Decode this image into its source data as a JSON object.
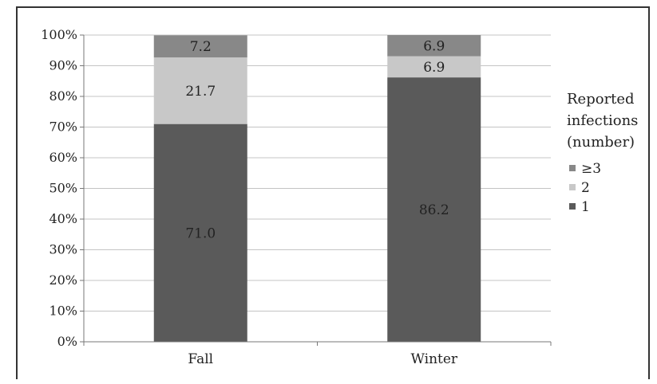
{
  "chart_data": {
    "type": "bar",
    "stacked": true,
    "categories": [
      "Fall",
      "Winter"
    ],
    "series": [
      {
        "name": "1",
        "values": [
          71.0,
          86.2
        ],
        "labels": [
          "71.0",
          "86.2"
        ],
        "color": "#5a5a5a",
        "label_color": "#222222"
      },
      {
        "name": "2",
        "values": [
          21.7,
          6.9
        ],
        "labels": [
          "21.7",
          "6.9"
        ],
        "color": "#c8c8c8",
        "label_color": "#222222"
      },
      {
        "name": "≥3",
        "values": [
          7.2,
          6.9
        ],
        "labels": [
          "7.2",
          "6.9"
        ],
        "color": "#888888",
        "label_color": "#222222"
      }
    ],
    "ylim": [
      0,
      100
    ],
    "yticks": [
      "0%",
      "10%",
      "20%",
      "30%",
      "40%",
      "50%",
      "60%",
      "70%",
      "80%",
      "90%",
      "100%"
    ],
    "grid": true,
    "legend": {
      "title_lines": [
        "Reported",
        "infections",
        "(number)"
      ],
      "placement": "right",
      "order": [
        "≥3",
        "2",
        "1"
      ]
    }
  }
}
